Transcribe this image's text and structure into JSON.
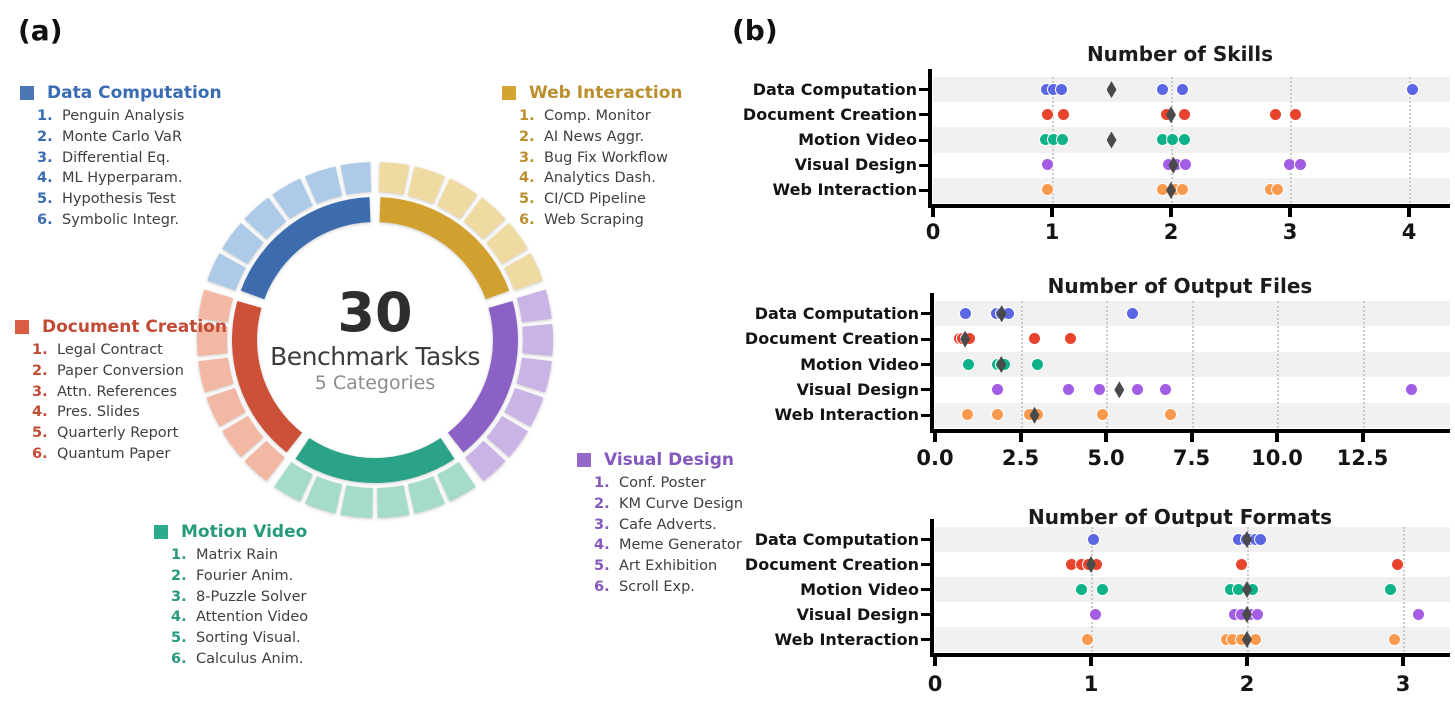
{
  "panel_a": {
    "label": "(a)",
    "center": {
      "value": "30",
      "line1": "Benchmark Tasks",
      "line2": "5 Categories"
    },
    "categories": [
      {
        "id": "data",
        "name": "Data Computation",
        "title_color": "#3a6cb4",
        "square_color": "#4b76b5",
        "arc_color": "#3d6cae",
        "arc_light": "#adcbe8",
        "items": [
          "Penguin Analysis",
          "Monte Carlo VaR",
          "Differential Eq.",
          "ML Hyperparam.",
          "Hypothesis Test",
          "Symbolic Integr."
        ]
      },
      {
        "id": "web",
        "name": "Web Interaction",
        "title_color": "#bb8f2e",
        "square_color": "#d5a430",
        "arc_color": "#d2a02f",
        "arc_light": "#efdaa2",
        "items": [
          "Comp. Monitor",
          "AI News Aggr.",
          "Bug Fix Workflow",
          "Analytics Dash.",
          "CI/CD Pipeline",
          "Web Scraping"
        ]
      },
      {
        "id": "document",
        "name": "Document Creation",
        "title_color": "#c24b36",
        "square_color": "#da5c42",
        "arc_color": "#cd5138",
        "arc_light": "#f3b8a3",
        "items": [
          "Legal Contract",
          "Paper Conversion",
          "Attn. References",
          "Pres. Slides",
          "Quarterly Report",
          "Quantum Paper"
        ]
      },
      {
        "id": "motion",
        "name": "Motion Video",
        "title_color": "#27997c",
        "square_color": "#2caa8d",
        "arc_color": "#2ba389",
        "arc_light": "#a4dcc9",
        "items": [
          "Matrix Rain",
          "Fourier Anim.",
          "8-Puzzle Solver",
          "Attention Video",
          "Sorting Visual.",
          "Calculus Anim."
        ]
      },
      {
        "id": "visual",
        "name": "Visual Design",
        "title_color": "#8558bd",
        "square_color": "#9569c7",
        "arc_color": "#8c61c6",
        "arc_light": "#cab3e5",
        "items": [
          "Conf. Poster",
          "KM Curve Design",
          "Cafe Adverts.",
          "Meme Generator",
          "Art Exhibition",
          "Scroll Exp."
        ]
      }
    ],
    "donut_clockwise_from_top": [
      "web",
      "visual",
      "motion",
      "document",
      "data"
    ]
  },
  "panel_b": {
    "label": "(b)"
  },
  "dot_colors": {
    "data": "#5a66e3",
    "document": "#e8432d",
    "motion": "#0eb288",
    "visual": "#a25de4",
    "web": "#f9994d",
    "median": "#4a4a4a"
  },
  "chart_data": [
    {
      "type": "pie",
      "title": "30 Benchmark Tasks",
      "subtitle": "5 Categories",
      "categories": [
        "Web Interaction",
        "Visual Design",
        "Motion Video",
        "Document Creation",
        "Data Computation"
      ],
      "values": [
        6,
        6,
        6,
        6,
        6
      ],
      "note": "donut: inner solid arc per category, outer ring split into 6 task segments"
    },
    {
      "type": "strip",
      "title": "Number of Skills",
      "categories": [
        "Data Computation",
        "Document Creation",
        "Motion Video",
        "Visual Design",
        "Web Interaction"
      ],
      "category_ids": [
        "data",
        "document",
        "motion",
        "visual",
        "web"
      ],
      "xlim": [
        0,
        4.33
      ],
      "xticks": [
        0,
        1,
        2,
        3,
        4
      ],
      "xtick_labels": [
        "0",
        "1",
        "2",
        "3",
        "4"
      ],
      "grid": "dotted-vertical",
      "series": [
        {
          "name": "Data Computation",
          "dots": [
            0.96,
            1.02,
            1.08,
            1.93,
            2.1,
            4.03
          ],
          "median": 1.5
        },
        {
          "name": "Document Creation",
          "dots": [
            0.97,
            1.1,
            1.97,
            2.12,
            2.88,
            3.05
          ],
          "median": 2.0
        },
        {
          "name": "Motion Video",
          "dots": [
            0.95,
            1.02,
            1.09,
            1.93,
            2.02,
            2.12
          ],
          "median": 1.5
        },
        {
          "name": "Visual Design",
          "dots": [
            0.97,
            1.98,
            2.05,
            2.13,
            3.0,
            3.09
          ],
          "median": 2.02
        },
        {
          "name": "Web Interaction",
          "dots": [
            0.97,
            1.93,
            2.04,
            2.1,
            2.84,
            2.9
          ],
          "median": 2.0
        }
      ]
    },
    {
      "type": "strip",
      "title": "Number of Output Files",
      "categories": [
        "Data Computation",
        "Document Creation",
        "Motion Video",
        "Visual Design",
        "Web Interaction"
      ],
      "category_ids": [
        "data",
        "document",
        "motion",
        "visual",
        "web"
      ],
      "xlim": [
        0,
        15
      ],
      "xticks": [
        0,
        2.5,
        5,
        7.5,
        10,
        12.5
      ],
      "xtick_labels": [
        "0.0",
        "2.5",
        "5.0",
        "7.5",
        "10.0",
        "12.5"
      ],
      "grid": "dotted-vertical",
      "series": [
        {
          "name": "Data Computation",
          "dots": [
            0.92,
            1.8,
            1.95,
            2.07,
            2.17,
            5.78
          ],
          "median": 1.95
        },
        {
          "name": "Document Creation",
          "dots": [
            0.72,
            0.82,
            0.93,
            1.03,
            2.91,
            3.98
          ],
          "median": 0.88
        },
        {
          "name": "Motion Video",
          "dots": [
            0.99,
            1.84,
            1.96,
            2.06,
            3.01
          ],
          "median": 1.94
        },
        {
          "name": "Visual Design",
          "dots": [
            1.84,
            3.93,
            4.81,
            5.93,
            6.76,
            13.96
          ],
          "median": 5.39
        },
        {
          "name": "Web Interaction",
          "dots": [
            0.96,
            1.84,
            2.79,
            3.01,
            4.91,
            6.91
          ],
          "median": 2.91
        }
      ]
    },
    {
      "type": "strip",
      "title": "Number of Output Formats",
      "categories": [
        "Data Computation",
        "Document Creation",
        "Motion Video",
        "Visual Design",
        "Web Interaction"
      ],
      "category_ids": [
        "data",
        "document",
        "motion",
        "visual",
        "web"
      ],
      "xlim": [
        0,
        3.3
      ],
      "xticks": [
        0,
        1,
        2,
        3
      ],
      "xtick_labels": [
        "0",
        "1",
        "2",
        "3"
      ],
      "grid": "dotted-vertical",
      "series": [
        {
          "name": "Data Computation",
          "dots": [
            1.02,
            1.95,
            2.0,
            2.03,
            2.06,
            2.09
          ],
          "median": 2.0
        },
        {
          "name": "Document Creation",
          "dots": [
            0.88,
            0.94,
            0.99,
            1.04,
            1.97,
            2.97
          ],
          "median": 1.0
        },
        {
          "name": "Motion Video",
          "dots": [
            0.94,
            1.08,
            1.9,
            1.95,
            2.04,
            2.92
          ],
          "median": 2.0
        },
        {
          "name": "Visual Design",
          "dots": [
            1.03,
            1.92,
            1.97,
            2.03,
            2.07,
            3.1
          ],
          "median": 2.0
        },
        {
          "name": "Web Interaction",
          "dots": [
            0.98,
            1.87,
            1.91,
            1.97,
            2.06,
            2.95
          ],
          "median": 2.0
        }
      ]
    }
  ]
}
